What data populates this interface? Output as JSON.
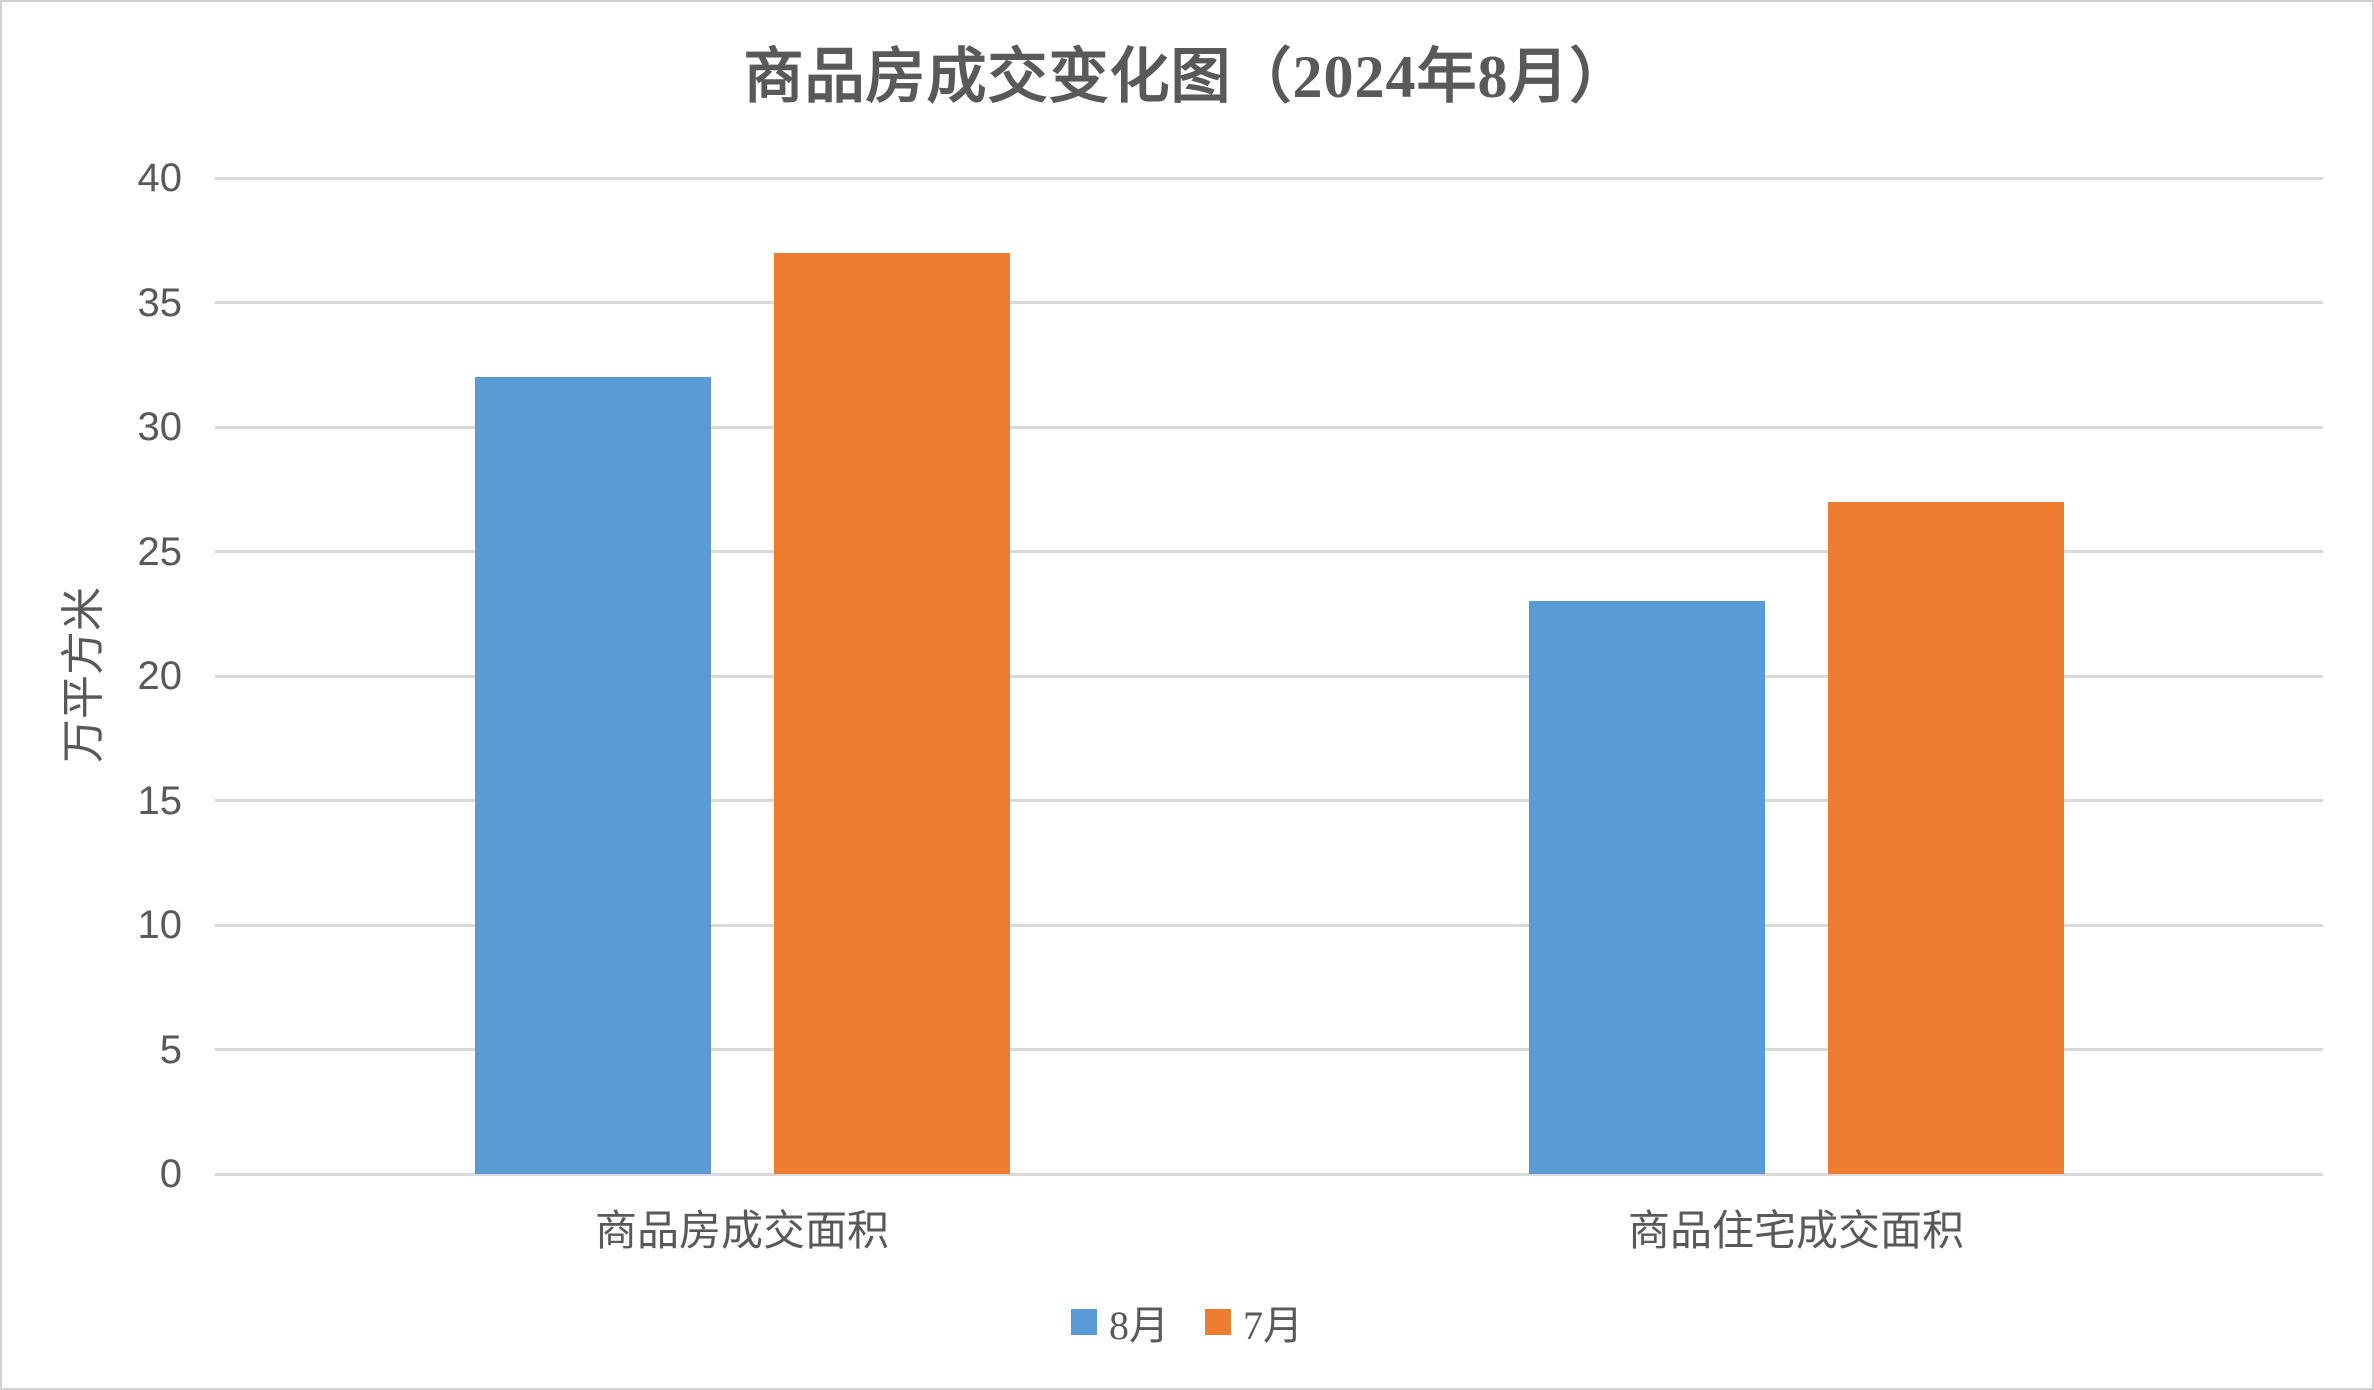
{
  "chart": {
    "background": "#ffffff",
    "border_color": "#d2d2d2",
    "text_color": "#595959",
    "gridline_color": "#d9d9d9"
  },
  "chart_data": {
    "type": "bar",
    "title": "商品房成交变化图（2024年8月）",
    "categories": [
      "商品房成交面积",
      "商品住宅成交面积"
    ],
    "series": [
      {
        "name": "8月",
        "color": "#5b9bd5",
        "values": [
          32,
          23
        ]
      },
      {
        "name": "7月",
        "color": "#ed7d31",
        "values": [
          37,
          27
        ]
      }
    ],
    "xlabel": "",
    "ylabel": "万平方米",
    "ylim": [
      0,
      40
    ],
    "ytick_step": 5,
    "yticks": [
      0,
      5,
      10,
      15,
      20,
      25,
      30,
      35,
      40
    ],
    "grid": true,
    "legend_position": "bottom-center"
  }
}
